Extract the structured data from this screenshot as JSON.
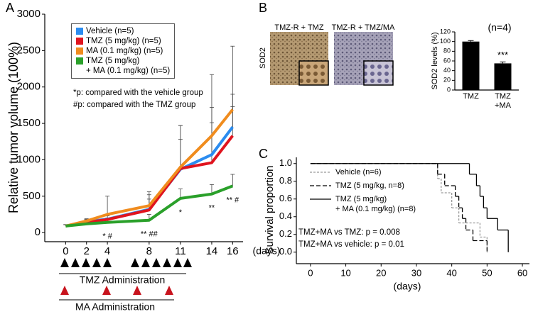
{
  "chart_data": [
    {
      "type": "line",
      "panel_label": "A",
      "y_label": "Relative tumor volume (100%)",
      "x_label": "(days)",
      "x": [
        0,
        2,
        4,
        8,
        11,
        14,
        16
      ],
      "xlim": [
        -2,
        17
      ],
      "xticks": [
        0,
        2,
        4,
        8,
        11,
        14,
        16
      ],
      "ylim": [
        -125,
        3000
      ],
      "yticks": [
        0,
        500,
        1000,
        1500,
        2000,
        2500,
        3000
      ],
      "series": [
        {
          "name": "Vehicle (n=5)",
          "color": "#2b8cf0",
          "values": [
            90,
            150,
            185,
            320,
            870,
            1070,
            1450
          ],
          "errors": [
            20,
            30,
            60,
            200,
            600,
            650,
            450
          ]
        },
        {
          "name": "TMZ (5 mg/kg) (n=5)",
          "color": "#e0141e",
          "values": [
            90,
            140,
            180,
            310,
            880,
            960,
            1330
          ],
          "errors": [
            20,
            30,
            50,
            150,
            400,
            550,
            400
          ]
        },
        {
          "name": "MA (0.1 mg/kg) (n=5)",
          "color": "#f08c1e",
          "values": [
            90,
            160,
            250,
            370,
            900,
            1330,
            1690
          ],
          "errors": [
            20,
            30,
            250,
            190,
            570,
            840,
            870
          ]
        },
        {
          "name": "TMZ (5 mg/kg)\n+ MA (0.1 mg/kg) (n=5)",
          "color": "#2aa02a",
          "values": [
            90,
            120,
            140,
            170,
            470,
            530,
            640
          ],
          "errors": [
            20,
            60,
            60,
            80,
            130,
            130,
            160
          ]
        }
      ],
      "significance_labels": [
        null,
        null,
        "* #",
        "** ##",
        "*",
        "**",
        "** #"
      ],
      "notes": [
        "*p: compared with the vehicle group",
        "#p: compared with the TMZ group"
      ],
      "schedule_labels": [
        "TMZ Administration",
        "MA Administration"
      ]
    },
    {
      "type": "bar",
      "panel_label": "B",
      "image_titles": [
        "TMZ-R + TMZ",
        "TMZ-R + TMZ/MA"
      ],
      "image_label": "SOD2",
      "annotation": "(n=4)",
      "y_label": "SOD2 levels (%)",
      "categories": [
        "TMZ",
        "TMZ\n+MA"
      ],
      "values": [
        100,
        55
      ],
      "errors": [
        2,
        3
      ],
      "significance_labels": [
        null,
        "***"
      ],
      "color": "#000000",
      "ylim": [
        0,
        120
      ],
      "yticks": [
        0,
        20,
        40,
        60,
        80,
        100,
        120
      ]
    },
    {
      "type": "step",
      "panel_label": "C",
      "y_label": "Survival proportion",
      "x_label": "(days)",
      "xlim": [
        -4,
        62
      ],
      "xticks": [
        0,
        10,
        20,
        30,
        40,
        50,
        60
      ],
      "ylim": [
        -0.13,
        1.07
      ],
      "yticks": [
        {
          "value": 0,
          "label": "0.0"
        },
        0.2,
        0.4,
        0.6,
        0.8,
        {
          "value": 1,
          "label": "1.0"
        }
      ],
      "series": [
        {
          "name": "Vehicle (n=6)",
          "color": "#999999",
          "dash": "3,2",
          "x": [
            0,
            36,
            37,
            40,
            42,
            48,
            50
          ],
          "values": [
            1,
            0.83,
            0.67,
            0.5,
            0.33,
            0.17,
            0
          ]
        },
        {
          "name": "TMZ (5 mg/kg, n=8)",
          "color": "#000000",
          "dash": "6,3",
          "x": [
            0,
            36,
            38,
            41,
            42,
            43,
            44,
            46,
            50
          ],
          "values": [
            1,
            0.88,
            0.75,
            0.63,
            0.5,
            0.38,
            0.25,
            0.13,
            0
          ]
        },
        {
          "name": "TMZ (5 mg/kg)\n+ MA (0.1 mg/kg) (n=8)",
          "color": "#000000",
          "dash": "none",
          "x": [
            0,
            45,
            47,
            48,
            49,
            50,
            53,
            56
          ],
          "values": [
            1,
            0.88,
            0.75,
            0.63,
            0.5,
            0.38,
            0.25,
            0
          ]
        }
      ],
      "notes": [
        "TMZ+MA vs TMZ: p = 0.008",
        "TMZ+MA vs vehicle: p = 0.01"
      ]
    }
  ]
}
